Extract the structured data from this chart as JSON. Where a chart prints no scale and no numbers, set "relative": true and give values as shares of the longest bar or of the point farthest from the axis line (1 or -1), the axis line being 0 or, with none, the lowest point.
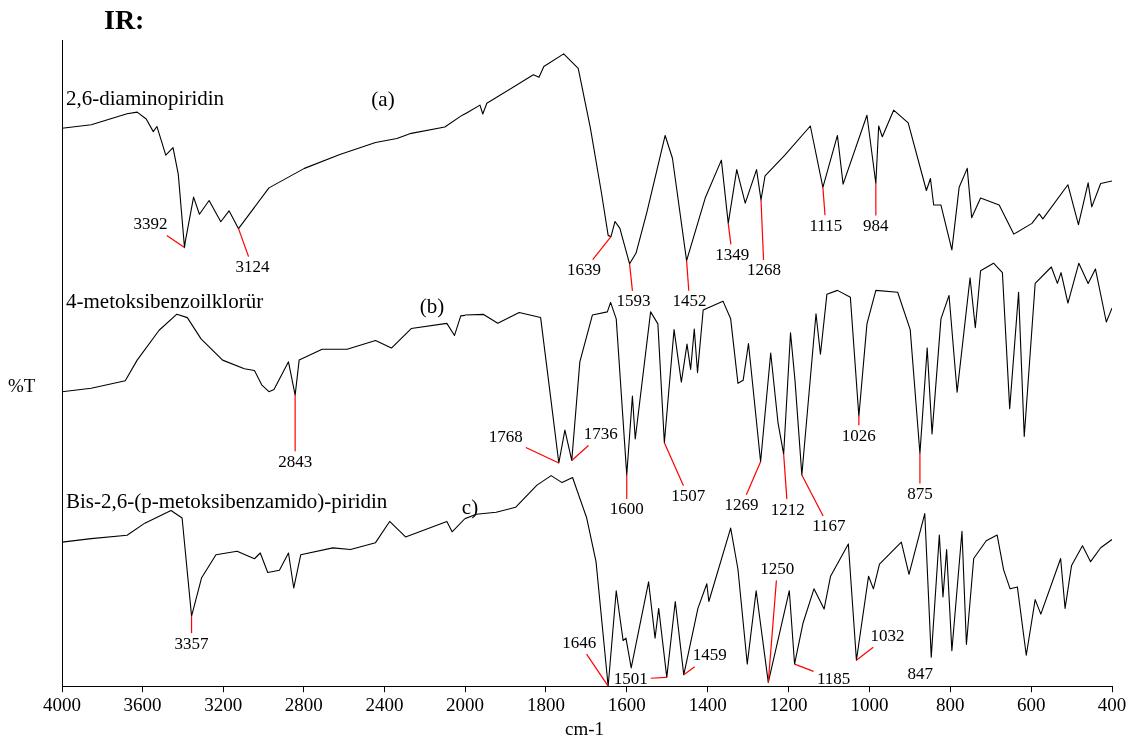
{
  "chart_data": [
    {
      "type": "line",
      "title": "IR:",
      "ylabel": "%T",
      "relative": true,
      "xlim": [
        4000,
        2000
      ],
      "xticks": [
        4000,
        3600,
        3200,
        2800,
        2400,
        2000
      ],
      "tick_labels": "x",
      "marker": "none",
      "series": [
        {
          "name": "2,6-diaminopiridin",
          "color": "#000000",
          "x": [
            4000,
            3855,
            3677,
            3627,
            3582,
            3547,
            3529,
            3485,
            3449,
            3423,
            3392,
            3388,
            3347,
            3318,
            3270,
            3212,
            3171,
            3124,
            2973,
            2797,
            2621,
            2444,
            2338,
            2267,
            2100,
            2021,
            2000
          ],
          "values": [
            0.972,
            0.978,
            0.997,
            1.0,
            0.988,
            0.966,
            0.975,
            0.925,
            0.938,
            0.892,
            0.764,
            0.775,
            0.852,
            0.822,
            0.846,
            0.809,
            0.828,
            0.797,
            0.868,
            0.902,
            0.926,
            0.947,
            0.954,
            0.963,
            0.974,
            0.993,
            0.997
          ]
        },
        {
          "name": "4-metoksibenzoilklorür",
          "color": "#000000",
          "x": [
            4000,
            3855,
            3686,
            3627,
            3518,
            3430,
            3378,
            3310,
            3203,
            3095,
            3045,
            3009,
            2973,
            2948,
            2876,
            2843,
            2823,
            2709,
            2585,
            2444,
            2365,
            2267,
            2090,
            2052,
            2021,
            2000
          ],
          "values": [
            0.513,
            0.519,
            0.532,
            0.568,
            0.62,
            0.648,
            0.642,
            0.605,
            0.568,
            0.553,
            0.55,
            0.525,
            0.513,
            0.517,
            0.565,
            0.507,
            0.568,
            0.587,
            0.587,
            0.602,
            0.589,
            0.623,
            0.632,
            0.611,
            0.645,
            0.646
          ]
        },
        {
          "name": "Bis-2,6-(p-metoksibenzamido)-piridin",
          "color": "#000000",
          "x": [
            4000,
            3855,
            3677,
            3589,
            3459,
            3404,
            3357,
            3307,
            3236,
            3131,
            3045,
            3016,
            2979,
            2921,
            2876,
            2850,
            2815,
            2656,
            2568,
            2444,
            2374,
            2295,
            2090,
            2064,
            2000
          ],
          "values": [
            0.251,
            0.257,
            0.263,
            0.284,
            0.306,
            0.293,
            0.122,
            0.189,
            0.229,
            0.235,
            0.222,
            0.232,
            0.198,
            0.202,
            0.232,
            0.171,
            0.229,
            0.241,
            0.238,
            0.25,
            0.287,
            0.26,
            0.287,
            0.269,
            0.292
          ]
        }
      ],
      "annotations": [
        {
          "text": "3392",
          "x": 3392,
          "y": 0.764
        },
        {
          "text": "3124",
          "x": 3124,
          "y": 0.797
        },
        {
          "text": "2843",
          "x": 2843,
          "y": 0.507
        },
        {
          "text": "3357",
          "x": 3357,
          "y": 0.122
        },
        "(a)",
        "(b)",
        "c)"
      ]
    },
    {
      "type": "line",
      "xlabel": "cm-1",
      "relative": true,
      "xlim": [
        2000,
        400
      ],
      "xticks": [
        1800,
        1600,
        1400,
        1200,
        1000,
        800,
        600,
        400
      ],
      "tick_labels": "x",
      "marker": "none",
      "series": [
        {
          "color": "#000000",
          "x": [
            2000,
            1963,
            1956,
            1946,
            1831,
            1817,
            1805,
            1756,
            1720,
            1690,
            1663,
            1646,
            1639,
            1629,
            1617,
            1593,
            1577,
            1550,
            1505,
            1487,
            1452,
            1406,
            1366,
            1349,
            1328,
            1307,
            1279,
            1268,
            1258,
            1209,
            1146,
            1115,
            1079,
            1065,
            1006,
            984,
            977,
            968,
            940,
            904,
            859,
            849,
            841,
            823,
            796,
            778,
            758,
            747,
            725,
            679,
            643,
            598,
            580,
            571,
            509,
            483,
            459,
            450,
            428,
            400
          ],
          "values": [
            0.905,
            0.919,
            0.905,
            0.922,
            0.967,
            0.963,
            0.98,
            1.0,
            0.977,
            0.883,
            0.782,
            0.713,
            0.711,
            0.735,
            0.724,
            0.668,
            0.685,
            0.75,
            0.871,
            0.835,
            0.673,
            0.772,
            0.832,
            0.732,
            0.817,
            0.764,
            0.817,
            0.769,
            0.807,
            0.84,
            0.886,
            0.789,
            0.871,
            0.794,
            0.903,
            0.795,
            0.886,
            0.869,
            0.911,
            0.891,
            0.784,
            0.803,
            0.761,
            0.761,
            0.69,
            0.789,
            0.819,
            0.741,
            0.772,
            0.761,
            0.715,
            0.732,
            0.747,
            0.739,
            0.793,
            0.73,
            0.796,
            0.758,
            0.795,
            0.799
          ]
        },
        {
          "color": "#000000",
          "x": [
            2000,
            1954,
            1919,
            1866,
            1813,
            1791,
            1768,
            1753,
            1736,
            1716,
            1685,
            1648,
            1640,
            1626,
            1600,
            1586,
            1579,
            1541,
            1523,
            1507,
            1483,
            1465,
            1451,
            1442,
            1433,
            1425,
            1411,
            1362,
            1343,
            1325,
            1312,
            1299,
            1269,
            1244,
            1226,
            1212,
            1195,
            1184,
            1167,
            1132,
            1121,
            1105,
            1079,
            1047,
            1026,
            1006,
            984,
            930,
            899,
            875,
            857,
            845,
            823,
            803,
            783,
            751,
            738,
            725,
            693,
            671,
            653,
            631,
            617,
            590,
            550,
            535,
            526,
            509,
            482,
            459,
            441,
            414,
            400
          ],
          "values": [
            0.587,
            0.588,
            0.574,
            0.591,
            0.583,
            0.471,
            0.353,
            0.405,
            0.357,
            0.513,
            0.587,
            0.592,
            0.607,
            0.581,
            0.334,
            0.459,
            0.391,
            0.592,
            0.573,
            0.385,
            0.564,
            0.481,
            0.541,
            0.501,
            0.565,
            0.496,
            0.595,
            0.609,
            0.581,
            0.479,
            0.484,
            0.542,
            0.355,
            0.527,
            0.417,
            0.367,
            0.559,
            0.484,
            0.334,
            0.589,
            0.525,
            0.62,
            0.626,
            0.615,
            0.427,
            0.573,
            0.626,
            0.623,
            0.564,
            0.368,
            0.535,
            0.399,
            0.581,
            0.618,
            0.465,
            0.646,
            0.567,
            0.657,
            0.669,
            0.654,
            0.439,
            0.623,
            0.395,
            0.637,
            0.663,
            0.637,
            0.654,
            0.606,
            0.669,
            0.637,
            0.66,
            0.576,
            0.598
          ]
        },
        {
          "color": "#000000",
          "x": [
            2000,
            1972,
            1923,
            1875,
            1822,
            1787,
            1760,
            1734,
            1699,
            1676,
            1646,
            1626,
            1609,
            1602,
            1589,
            1546,
            1530,
            1521,
            1501,
            1480,
            1459,
            1424,
            1402,
            1397,
            1343,
            1325,
            1302,
            1280,
            1250,
            1198,
            1185,
            1164,
            1137,
            1112,
            1096,
            1052,
            1032,
            1002,
            990,
            975,
            921,
            902,
            863,
            847,
            827,
            818,
            809,
            796,
            771,
            760,
            742,
            711,
            684,
            668,
            652,
            634,
            612,
            590,
            576,
            527,
            516,
            500,
            473,
            453,
            428,
            400
          ],
          "values": [
            0.265,
            0.272,
            0.275,
            0.283,
            0.318,
            0.333,
            0.322,
            0.33,
            0.266,
            0.197,
            0,
            0.151,
            0.072,
            0.076,
            0.029,
            0.165,
            0.076,
            0.123,
            0.014,
            0.134,
            0.018,
            0.123,
            0.162,
            0.134,
            0.25,
            0.185,
            0.035,
            0.151,
            0.006,
            0.151,
            0.035,
            0.1,
            0.154,
            0.122,
            0.174,
            0.225,
            0.041,
            0.174,
            0.154,
            0.193,
            0.228,
            0.177,
            0.273,
            0.046,
            0.239,
            0.141,
            0.216,
            0.056,
            0.245,
            0.066,
            0.202,
            0.23,
            0.239,
            0.184,
            0.154,
            0.157,
            0.049,
            0.137,
            0.114,
            0.202,
            0.123,
            0.191,
            0.222,
            0.197,
            0.219,
            0.232
          ]
        }
      ],
      "annotations": [
        {
          "text": "1639",
          "x": 1639,
          "y": 0.711
        },
        {
          "text": "1593",
          "x": 1593,
          "y": 0.668
        },
        {
          "text": "1452",
          "x": 1452,
          "y": 0.673
        },
        {
          "text": "1349",
          "x": 1349,
          "y": 0.732
        },
        {
          "text": "1268",
          "x": 1268,
          "y": 0.769
        },
        {
          "text": "1115",
          "x": 1115,
          "y": 0.789
        },
        {
          "text": "984",
          "x": 984,
          "y": 0.795
        },
        {
          "text": "1768",
          "x": 1768,
          "y": 0.353
        },
        {
          "text": "1736",
          "x": 1736,
          "y": 0.357
        },
        {
          "text": "1600",
          "x": 1600,
          "y": 0.334
        },
        {
          "text": "1507",
          "x": 1507,
          "y": 0.385
        },
        {
          "text": "1269",
          "x": 1269,
          "y": 0.355
        },
        {
          "text": "1212",
          "x": 1212,
          "y": 0.367
        },
        {
          "text": "1167",
          "x": 1167,
          "y": 0.334
        },
        {
          "text": "1026",
          "x": 1026,
          "y": 0.427
        },
        {
          "text": "875",
          "x": 875,
          "y": 0.368
        },
        {
          "text": "1646",
          "x": 1646,
          "y": 0
        },
        {
          "text": "1501",
          "x": 1501,
          "y": 0.014
        },
        {
          "text": "1459",
          "x": 1459,
          "y": 0.018
        },
        {
          "text": "1250",
          "x": 1250,
          "y": 0.006
        },
        {
          "text": "1185",
          "x": 1185,
          "y": 0.035
        },
        {
          "text": "1032",
          "x": 1032,
          "y": 0.041
        },
        {
          "text": "847",
          "x": 847,
          "y": 0.046
        }
      ]
    }
  ]
}
